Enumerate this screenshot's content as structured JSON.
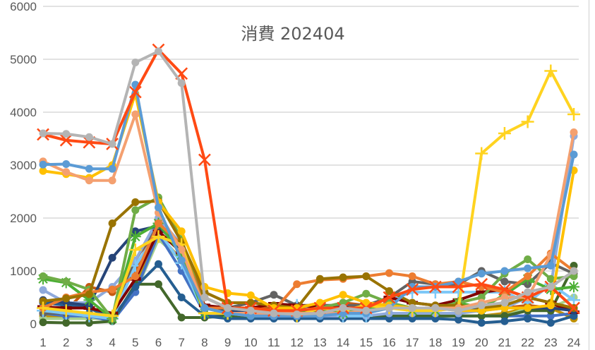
{
  "chart_data": {
    "type": "line",
    "title": "消費 202404",
    "xlabel": "",
    "ylabel": "",
    "ylim": [
      0,
      6000
    ],
    "yticks": [
      0,
      1000,
      2000,
      3000,
      4000,
      5000,
      6000
    ],
    "x": [
      1,
      2,
      3,
      4,
      5,
      6,
      7,
      8,
      9,
      10,
      11,
      12,
      13,
      14,
      15,
      16,
      17,
      18,
      19,
      20,
      21,
      22,
      23,
      24
    ],
    "grid": true,
    "legend": "none",
    "series": [
      {
        "name": "s1",
        "color": "#b4b4b4",
        "marker": "circle",
        "values": [
          3600,
          3590,
          3530,
          3400,
          4940,
          5150,
          4550,
          500,
          300,
          250,
          200,
          180,
          200,
          300,
          250,
          300,
          300,
          300,
          250,
          350,
          400,
          600,
          700,
          1000
        ]
      },
      {
        "name": "s2",
        "color": "#ff4a14",
        "marker": "x",
        "values": [
          3580,
          3470,
          3430,
          3400,
          4380,
          5180,
          4730,
          3100,
          300,
          300,
          250,
          250,
          300,
          300,
          300,
          500,
          650,
          700,
          700,
          750,
          650,
          500,
          700,
          300
        ]
      },
      {
        "name": "s3",
        "color": "#5b9bd5",
        "marker": "circle",
        "values": [
          3010,
          3020,
          2930,
          2930,
          4520,
          2200,
          1200,
          300,
          200,
          150,
          150,
          150,
          150,
          200,
          200,
          300,
          700,
          700,
          800,
          950,
          1000,
          1050,
          1100,
          3200
        ]
      },
      {
        "name": "s4",
        "color": "#f4a070",
        "marker": "circle",
        "values": [
          3070,
          2870,
          2710,
          2710,
          3960,
          2100,
          1400,
          300,
          200,
          200,
          200,
          200,
          200,
          200,
          250,
          300,
          300,
          300,
          300,
          400,
          500,
          500,
          1300,
          3620
        ]
      },
      {
        "name": "s5",
        "color": "#ffc000",
        "marker": "circle",
        "values": [
          2890,
          2830,
          2760,
          3000,
          4350,
          2300,
          1750,
          700,
          580,
          540,
          300,
          300,
          400,
          550,
          400,
          350,
          300,
          300,
          250,
          250,
          300,
          300,
          350,
          2900
        ]
      },
      {
        "name": "s6",
        "color": "#ffd320",
        "marker": "plus",
        "values": [
          300,
          250,
          200,
          150,
          1400,
          1650,
          1500,
          200,
          200,
          200,
          200,
          150,
          300,
          250,
          350,
          300,
          250,
          250,
          300,
          3220,
          3600,
          3820,
          4780,
          3960
        ]
      },
      {
        "name": "s7",
        "color": "#997300",
        "marker": "circle",
        "values": [
          430,
          480,
          560,
          1900,
          2300,
          2320,
          1550,
          600,
          400,
          400,
          350,
          300,
          850,
          880,
          900,
          620,
          400,
          350,
          350,
          300,
          350,
          500,
          400,
          300
        ]
      },
      {
        "name": "s8",
        "color": "#ed7d31",
        "marker": "circle",
        "values": [
          300,
          500,
          600,
          650,
          900,
          1900,
          1500,
          300,
          300,
          250,
          250,
          750,
          830,
          850,
          900,
          960,
          900,
          750,
          800,
          700,
          600,
          900,
          1330,
          1000
        ]
      },
      {
        "name": "s9",
        "color": "#70ad47",
        "marker": "circle",
        "values": [
          900,
          800,
          650,
          100,
          2150,
          2390,
          1600,
          300,
          200,
          200,
          200,
          250,
          300,
          400,
          570,
          400,
          300,
          300,
          400,
          500,
          950,
          1220,
          850,
          900
        ]
      },
      {
        "name": "s10",
        "color": "#4caf35",
        "marker": "star",
        "values": [
          850,
          780,
          450,
          100,
          1650,
          1900,
          1300,
          200,
          200,
          200,
          250,
          250,
          250,
          200,
          300,
          350,
          250,
          250,
          400,
          300,
          550,
          850,
          650,
          700
        ]
      },
      {
        "name": "s11",
        "color": "#264478",
        "marker": "circle",
        "values": [
          450,
          400,
          350,
          1250,
          1750,
          1850,
          1400,
          300,
          250,
          250,
          250,
          250,
          250,
          250,
          250,
          300,
          300,
          300,
          300,
          300,
          300,
          300,
          300,
          250
        ]
      },
      {
        "name": "s12",
        "color": "#7f0000",
        "marker": "dash",
        "values": [
          320,
          300,
          300,
          200,
          850,
          1750,
          1350,
          350,
          300,
          300,
          380,
          350,
          320,
          300,
          300,
          500,
          400,
          350,
          450,
          600,
          650,
          500,
          400,
          220
        ]
      },
      {
        "name": "s13",
        "color": "#7ec8f7",
        "marker": "plus",
        "values": [
          250,
          200,
          150,
          100,
          1100,
          1750,
          1150,
          200,
          200,
          200,
          200,
          350,
          300,
          150,
          150,
          450,
          600,
          600,
          600,
          600,
          600,
          400,
          750,
          450
        ]
      },
      {
        "name": "s14",
        "color": "#8faadc",
        "marker": "circle",
        "values": [
          640,
          400,
          400,
          700,
          1200,
          2000,
          1500,
          300,
          200,
          150,
          150,
          150,
          150,
          150,
          150,
          200,
          200,
          200,
          200,
          250,
          300,
          500,
          700,
          3550
        ]
      },
      {
        "name": "s15",
        "color": "#255e91",
        "marker": "circle",
        "values": [
          400,
          350,
          300,
          100,
          700,
          1130,
          500,
          150,
          100,
          100,
          100,
          100,
          100,
          100,
          100,
          100,
          100,
          100,
          80,
          20,
          50,
          100,
          20,
          150
        ]
      },
      {
        "name": "s16",
        "color": "#43682b",
        "marker": "circle",
        "values": [
          30,
          20,
          20,
          50,
          750,
          750,
          120,
          120,
          150,
          150,
          150,
          150,
          150,
          150,
          150,
          150,
          150,
          150,
          150,
          150,
          150,
          250,
          250,
          1100
        ]
      },
      {
        "name": "s17",
        "color": "#636363",
        "marker": "circle",
        "values": [
          200,
          200,
          200,
          150,
          1200,
          1900,
          1400,
          300,
          300,
          400,
          550,
          350,
          350,
          350,
          350,
          500,
          800,
          750,
          750,
          1000,
          800,
          750,
          1150,
          950
        ]
      },
      {
        "name": "s18",
        "color": "#4472c4",
        "marker": "circle",
        "values": [
          200,
          150,
          150,
          50,
          600,
          1700,
          1000,
          200,
          150,
          150,
          150,
          150,
          150,
          150,
          150,
          150,
          150,
          150,
          150,
          150,
          150,
          150,
          150,
          200
        ]
      },
      {
        "name": "s19",
        "color": "#c55a11",
        "marker": "circle",
        "values": [
          250,
          250,
          700,
          600,
          1000,
          1950,
          1400,
          500,
          300,
          300,
          300,
          300,
          300,
          400,
          350,
          300,
          300,
          300,
          300,
          300,
          300,
          350,
          300,
          300
        ]
      },
      {
        "name": "s20",
        "color": "#a9d18e",
        "marker": "circle",
        "values": [
          100,
          100,
          100,
          100,
          600,
          1600,
          1200,
          200,
          150,
          150,
          150,
          150,
          150,
          150,
          150,
          150,
          150,
          150,
          150,
          150,
          150,
          300,
          300,
          500
        ]
      },
      {
        "name": "s21",
        "color": "#bf9000",
        "marker": "circle",
        "values": [
          150,
          150,
          150,
          100,
          700,
          1700,
          1200,
          200,
          150,
          150,
          150,
          150,
          150,
          150,
          150,
          150,
          150,
          150,
          150,
          150,
          200,
          300,
          300,
          100
        ]
      }
    ]
  }
}
